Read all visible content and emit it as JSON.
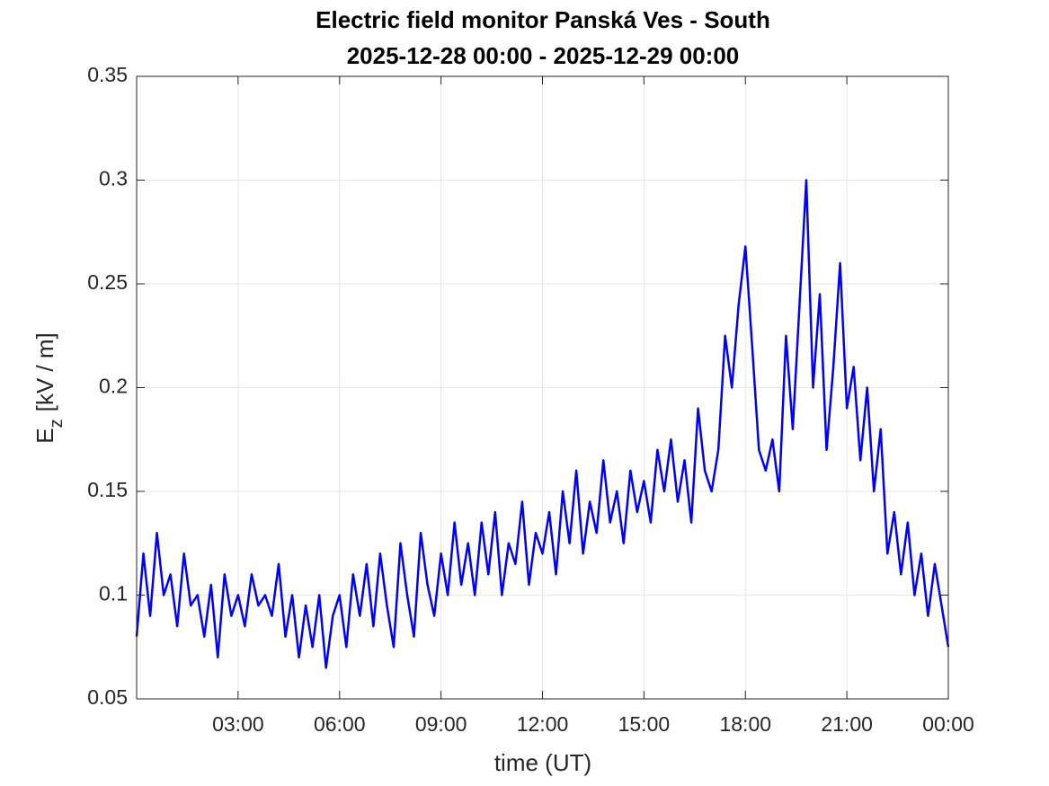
{
  "chart_data": {
    "type": "line",
    "title": "Electric field monitor Panská Ves - South",
    "subtitle": "2025-12-28 00:00 - 2025-12-29 00:00",
    "xlabel": "time (UT)",
    "ylabel": [
      "E",
      "z",
      "[kV / m]"
    ],
    "xlim": [
      0,
      24
    ],
    "xticks": [
      {
        "value": 3,
        "label": "03:00"
      },
      {
        "value": 6,
        "label": "06:00"
      },
      {
        "value": 9,
        "label": "09:00"
      },
      {
        "value": 12,
        "label": "12:00"
      },
      {
        "value": 15,
        "label": "15:00"
      },
      {
        "value": 18,
        "label": "18:00"
      },
      {
        "value": 21,
        "label": "21:00"
      },
      {
        "value": 24,
        "label": "00:00"
      }
    ],
    "ylim": [
      0.05,
      0.35
    ],
    "yticks": [
      0.05,
      0.1,
      0.15,
      0.2,
      0.25,
      0.3,
      0.35
    ],
    "grid": true,
    "x": [
      0,
      0.2,
      0.4,
      0.6,
      0.8,
      1,
      1.2,
      1.4,
      1.6,
      1.8,
      2,
      2.2,
      2.4,
      2.6,
      2.8,
      3,
      3.2,
      3.4,
      3.6,
      3.8,
      4,
      4.2,
      4.4,
      4.6,
      4.8,
      5,
      5.2,
      5.4,
      5.6,
      5.8,
      6,
      6.2,
      6.4,
      6.6,
      6.8,
      7,
      7.2,
      7.4,
      7.6,
      7.8,
      8,
      8.2,
      8.4,
      8.6,
      8.8,
      9,
      9.2,
      9.4,
      9.6,
      9.8,
      10,
      10.2,
      10.4,
      10.6,
      10.8,
      11,
      11.2,
      11.4,
      11.6,
      11.8,
      12,
      12.2,
      12.4,
      12.6,
      12.8,
      13,
      13.2,
      13.4,
      13.6,
      13.8,
      14,
      14.2,
      14.4,
      14.6,
      14.8,
      15,
      15.2,
      15.4,
      15.6,
      15.8,
      16,
      16.2,
      16.4,
      16.6,
      16.8,
      17,
      17.2,
      17.4,
      17.6,
      17.8,
      18,
      18.2,
      18.4,
      18.6,
      18.8,
      19,
      19.2,
      19.4,
      19.6,
      19.8,
      20,
      20.2,
      20.4,
      20.6,
      20.8,
      21,
      21.2,
      21.4,
      21.6,
      21.8,
      22,
      22.2,
      22.4,
      22.6,
      22.8,
      23,
      23.2,
      23.4,
      23.6,
      23.8,
      24
    ],
    "series": [
      {
        "color": "#0000ff",
        "values": [
          0.08,
          0.12,
          0.09,
          0.13,
          0.1,
          0.11,
          0.085,
          0.12,
          0.095,
          0.1,
          0.08,
          0.105,
          0.07,
          0.11,
          0.09,
          0.1,
          0.085,
          0.11,
          0.095,
          0.1,
          0.09,
          0.115,
          0.08,
          0.1,
          0.07,
          0.095,
          0.075,
          0.1,
          0.065,
          0.09,
          0.1,
          0.075,
          0.11,
          0.09,
          0.115,
          0.085,
          0.12,
          0.095,
          0.075,
          0.125,
          0.1,
          0.08,
          0.13,
          0.105,
          0.09,
          0.12,
          0.1,
          0.135,
          0.105,
          0.125,
          0.1,
          0.135,
          0.11,
          0.14,
          0.1,
          0.125,
          0.115,
          0.145,
          0.105,
          0.13,
          0.12,
          0.14,
          0.11,
          0.15,
          0.125,
          0.16,
          0.12,
          0.145,
          0.13,
          0.165,
          0.135,
          0.15,
          0.125,
          0.16,
          0.14,
          0.155,
          0.135,
          0.17,
          0.15,
          0.175,
          0.145,
          0.165,
          0.135,
          0.19,
          0.16,
          0.15,
          0.17,
          0.225,
          0.2,
          0.24,
          0.268,
          0.22,
          0.17,
          0.16,
          0.175,
          0.15,
          0.225,
          0.18,
          0.24,
          0.3,
          0.2,
          0.245,
          0.17,
          0.21,
          0.26,
          0.19,
          0.21,
          0.165,
          0.2,
          0.15,
          0.18,
          0.12,
          0.14,
          0.11,
          0.135,
          0.1,
          0.12,
          0.09,
          0.115,
          0.095,
          0.075
        ]
      }
    ]
  }
}
